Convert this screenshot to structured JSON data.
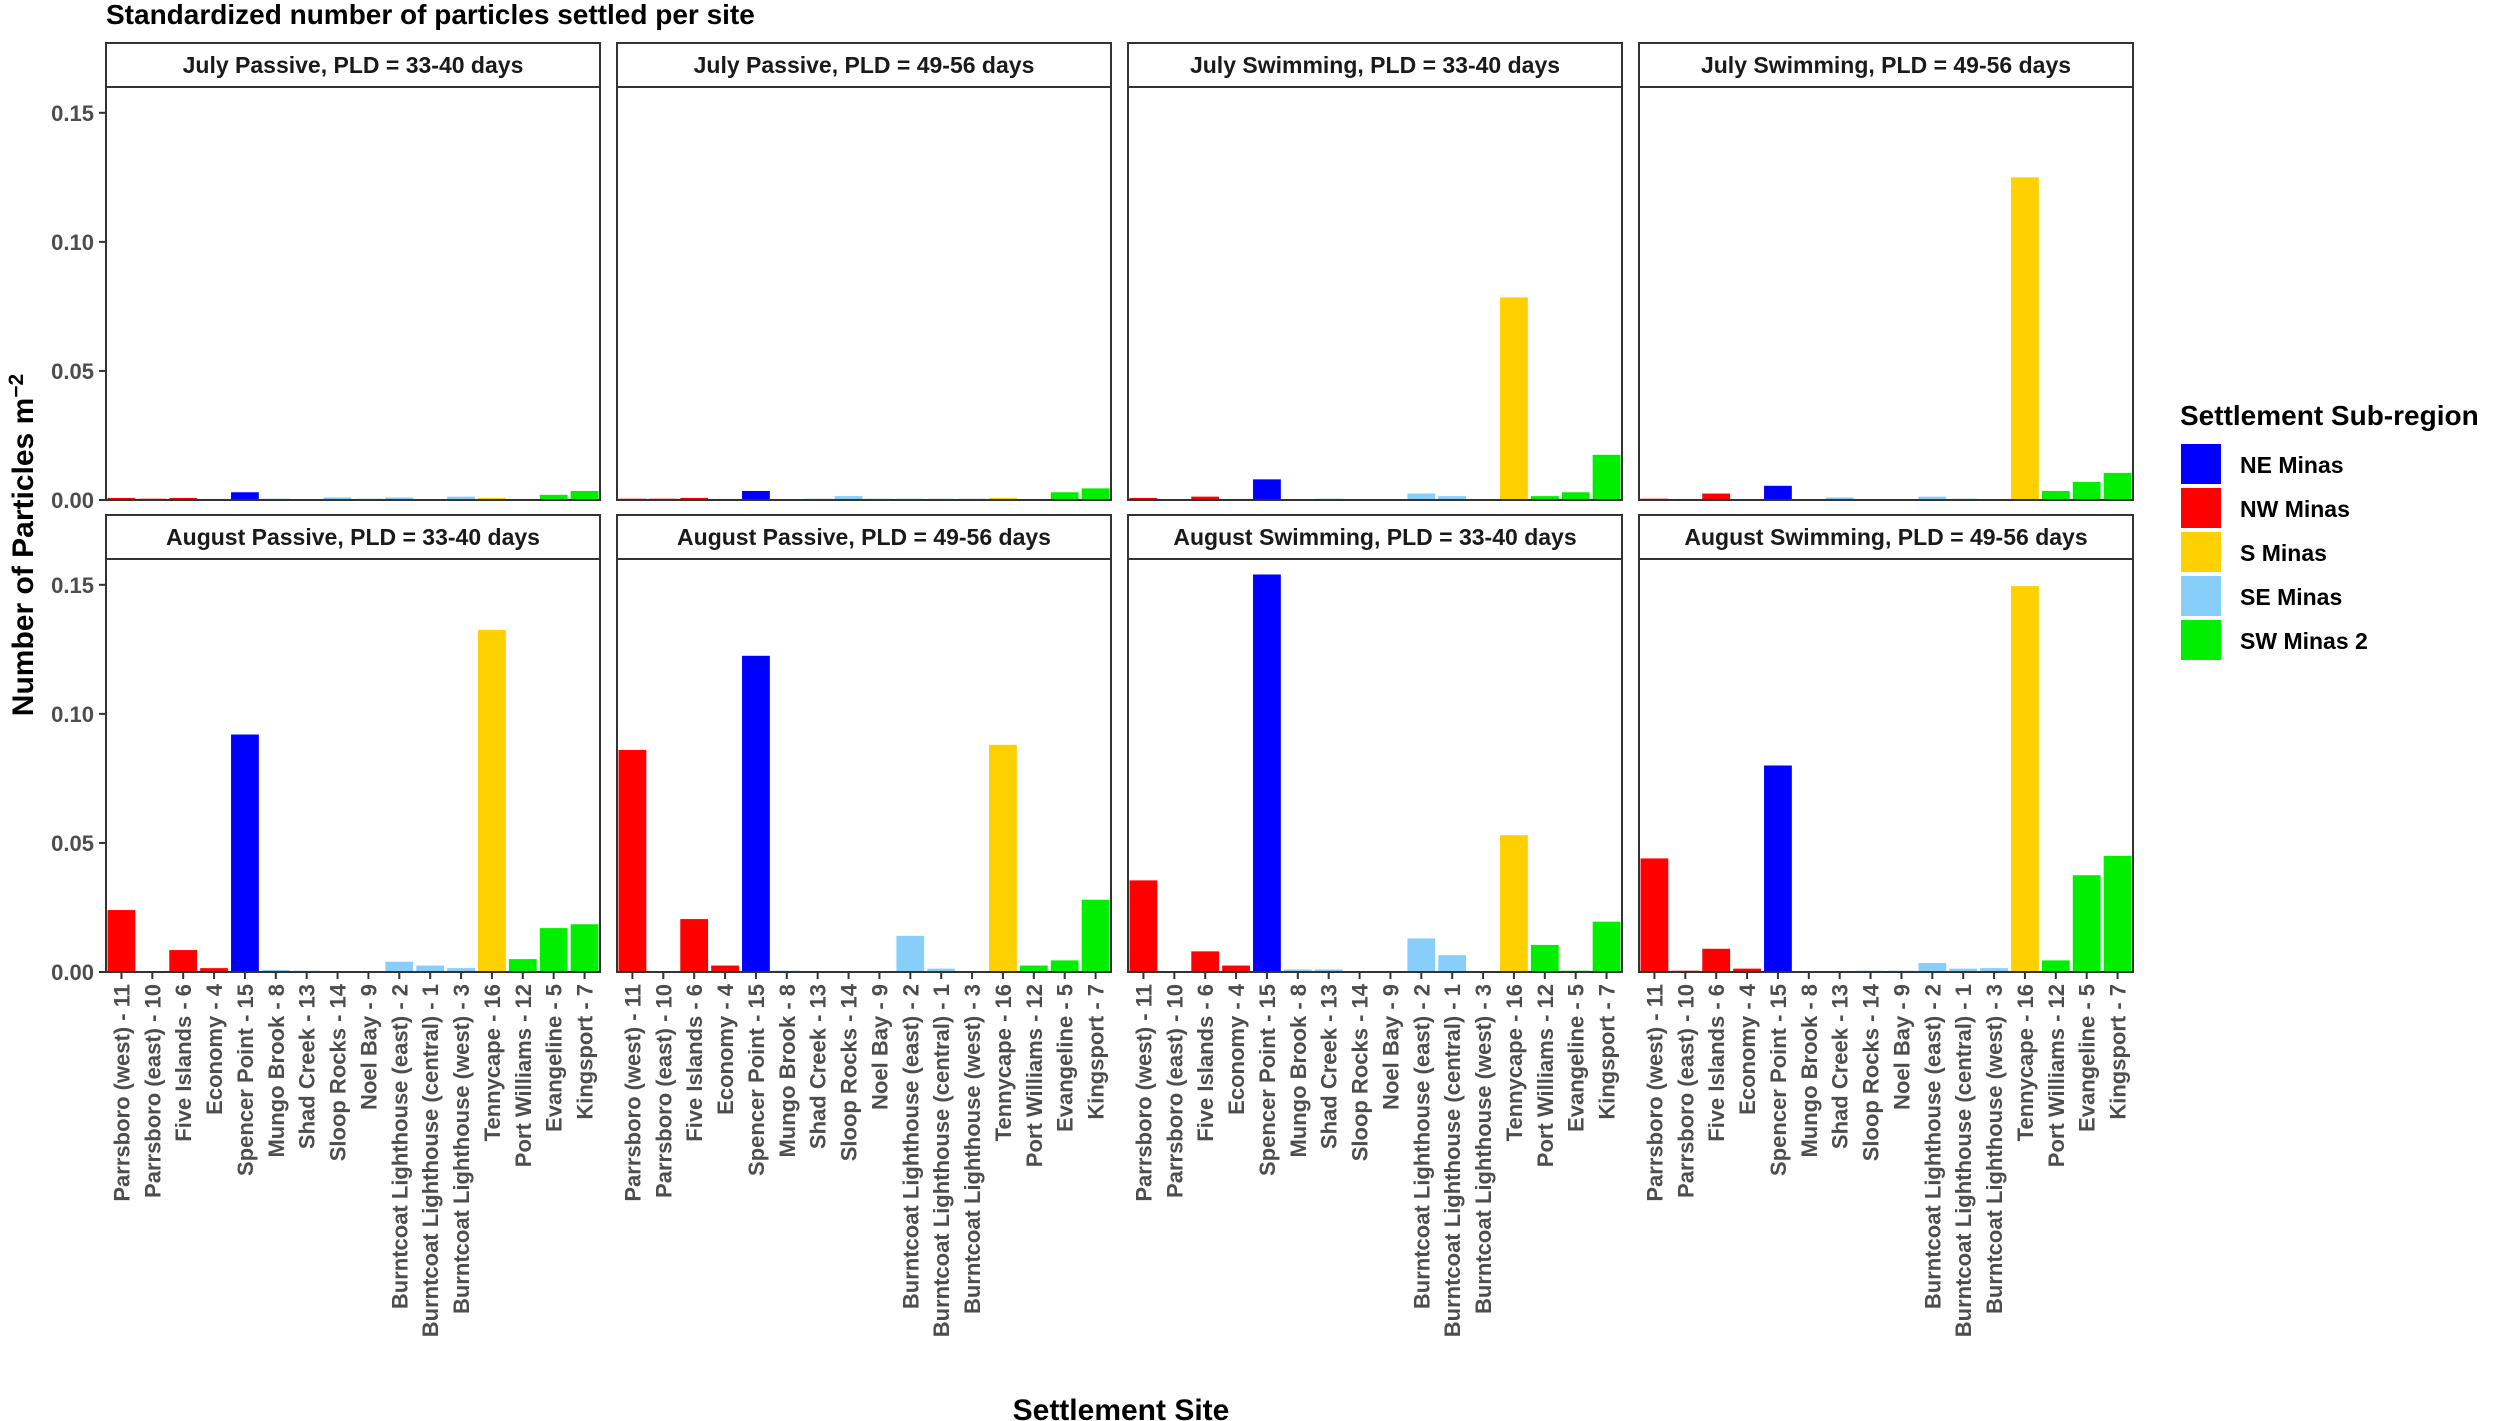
{
  "chart_data": {
    "type": "bar",
    "title": "Standardized number of particles settled per site",
    "xlabel": "Settlement Site",
    "ylabel": "Number of Particles m",
    "ylabel_sup": "−2",
    "ylim": [
      0,
      0.16
    ],
    "yticks": [
      "0.00",
      "0.05",
      "0.10",
      "0.15"
    ],
    "ytick_values": [
      0,
      0.05,
      0.1,
      0.15
    ],
    "categories": [
      "Parrsboro (west) - 11",
      "Parrsboro (east) - 10",
      "Five Islands - 6",
      "Economy - 4",
      "Spencer Point - 15",
      "Mungo Brook - 8",
      "Shad Creek - 13",
      "Sloop Rocks - 14",
      "Noel Bay - 9",
      "Burntcoat Lighthouse (east) - 2",
      "Burntcoat Lighthouse (central) - 1",
      "Burntcoat Lighthouse (west) - 3",
      "Tennycape - 16",
      "Port Williams - 12",
      "Evangeline - 5",
      "Kingsport - 7"
    ],
    "category_region": [
      "NW Minas",
      "NW Minas",
      "NW Minas",
      "NW Minas",
      "NE Minas",
      "SE Minas",
      "SE Minas",
      "SE Minas",
      "SE Minas",
      "SE Minas",
      "SE Minas",
      "SE Minas",
      "S Minas",
      "SW Minas 2",
      "SW Minas 2",
      "SW Minas 2"
    ],
    "legend": {
      "title": "Settlement Sub-region",
      "position": "right",
      "entries": [
        {
          "name": "NE Minas",
          "color": "#0000ff"
        },
        {
          "name": "NW Minas",
          "color": "#ff0000"
        },
        {
          "name": "S Minas",
          "color": "#ffd000"
        },
        {
          "name": "SE Minas",
          "color": "#87cefa"
        },
        {
          "name": "SW Minas 2",
          "color": "#00ee00"
        }
      ]
    },
    "panels": [
      {
        "title": "July Passive, PLD = 33-40 days",
        "values": [
          0.0008,
          0.0005,
          0.0008,
          0.0004,
          0.003,
          0.0005,
          0.0003,
          0.001,
          0.0005,
          0.001,
          0.0003,
          0.0013,
          0.0008,
          0.0004,
          0.002,
          0.0035
        ]
      },
      {
        "title": "July Passive, PLD = 49-56 days",
        "values": [
          0.0005,
          0.0005,
          0.0008,
          0.0004,
          0.0035,
          0.0004,
          0.0005,
          0.0015,
          0.0005,
          0.0005,
          0.0005,
          0.0005,
          0.0008,
          0.0004,
          0.003,
          0.0045
        ]
      },
      {
        "title": "July Swimming, PLD = 33-40 days",
        "values": [
          0.0008,
          0,
          0.0013,
          0.0004,
          0.008,
          0,
          0.0005,
          0,
          0,
          0.0025,
          0.0015,
          0,
          0.0785,
          0.0015,
          0.003,
          0.0175
        ]
      },
      {
        "title": "July Swimming, PLD = 49-56 days",
        "values": [
          0.0005,
          0.0004,
          0.0025,
          0.0003,
          0.0055,
          0,
          0.001,
          0,
          0,
          0.0013,
          0.0005,
          0,
          0.125,
          0.0035,
          0.007,
          0.0105
        ]
      },
      {
        "title": "August Passive, PLD = 33-40 days",
        "values": [
          0.024,
          0,
          0.0085,
          0.0015,
          0.092,
          0.0008,
          0.0005,
          0.0003,
          0.0003,
          0.004,
          0.0025,
          0.0015,
          0.1325,
          0.005,
          0.017,
          0.0185
        ]
      },
      {
        "title": "August Passive, PLD = 49-56 days",
        "values": [
          0.086,
          0,
          0.0205,
          0.0025,
          0.1225,
          0.0005,
          0.0003,
          0.0003,
          0,
          0.014,
          0.0013,
          0,
          0.088,
          0.0025,
          0.0045,
          0.028
        ]
      },
      {
        "title": "August Swimming, PLD = 33-40 days",
        "values": [
          0.0355,
          0,
          0.008,
          0.0025,
          0.154,
          0.001,
          0.001,
          0,
          0,
          0.013,
          0.0065,
          0,
          0.053,
          0.0105,
          0.0005,
          0.0195
        ]
      },
      {
        "title": "August Swimming, PLD = 49-56 days",
        "values": [
          0.044,
          0.0005,
          0.009,
          0.0013,
          0.08,
          0,
          0,
          0.0005,
          0.0005,
          0.0035,
          0.0013,
          0.0015,
          0.1495,
          0.0045,
          0.0375,
          0.045
        ]
      }
    ]
  }
}
